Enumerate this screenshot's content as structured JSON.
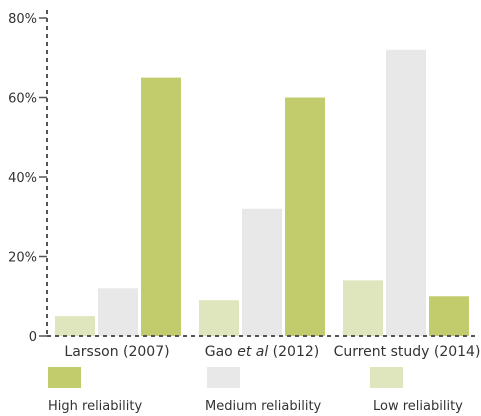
{
  "chart_data": {
    "type": "bar",
    "categories": [
      "Larsson (2007)",
      "Gao et al (2012)",
      "Current study (2014)"
    ],
    "series": [
      {
        "name": "Low reliability",
        "values": [
          5,
          9,
          14
        ],
        "color": "#dfe5bd"
      },
      {
        "name": "Medium reliability",
        "values": [
          12,
          32,
          72
        ],
        "color": "#e8e8e8"
      },
      {
        "name": "High reliability",
        "values": [
          65,
          60,
          10
        ],
        "color": "#c2cc6c"
      }
    ],
    "legend_order": [
      "High reliability",
      "Medium reliability",
      "Low reliability"
    ],
    "legend_position": "bottom",
    "y_ticks": [
      "0",
      "20%",
      "40%",
      "60%",
      "80%"
    ],
    "y_tick_values": [
      0,
      20,
      40,
      60,
      80
    ],
    "ylim": [
      0,
      80
    ],
    "y_axis_style": "dashed",
    "x_axis_style": "dashed",
    "grid": false,
    "title": "",
    "xlabel": "",
    "ylabel": ""
  }
}
